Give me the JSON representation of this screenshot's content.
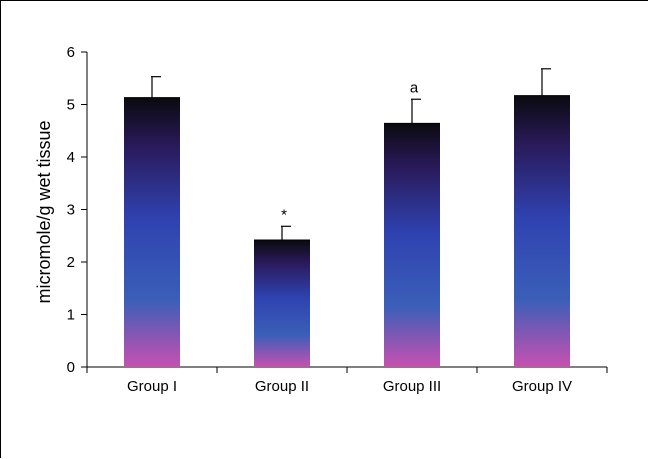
{
  "chart_data": {
    "type": "bar",
    "title": "",
    "xlabel": "",
    "ylabel": "micromole/g wet tissue",
    "categories": [
      "Group I",
      "Group II",
      "Group III",
      "Group IV"
    ],
    "values": [
      5.13,
      2.42,
      4.64,
      5.17
    ],
    "errors": [
      0.4,
      0.26,
      0.46,
      0.51
    ],
    "annotations": [
      "",
      "*",
      "a",
      ""
    ],
    "ylim": [
      0,
      6
    ],
    "yticks": [
      0,
      1,
      2,
      3,
      4,
      5,
      6
    ],
    "grid": false,
    "legend": "none",
    "colors": {
      "bar_top": "#0a0a0e",
      "bar_upper": "#2a1a5a",
      "bar_mid": "#2f42b0",
      "bar_lower": "#3a5fb8",
      "bar_bottom": "#c850b0"
    }
  }
}
